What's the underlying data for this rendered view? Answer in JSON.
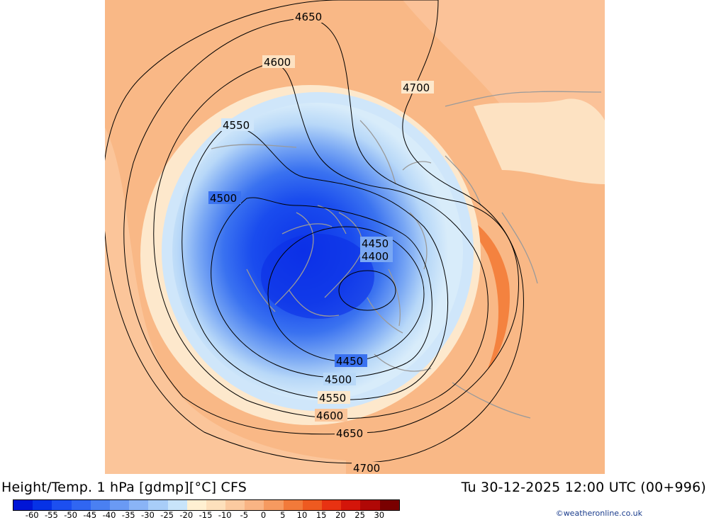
{
  "title": {
    "left": "Height/Temp. 1 hPa [gdmp][°C] CFS",
    "right": "Tu 30-12-2025 12:00 UTC (00+996)"
  },
  "credit": "©weatheronline.co.uk",
  "colors": {
    "background_warm": "#f9b886",
    "ocean_warm": "#fcd2ac",
    "hot_streak": "#f4823f",
    "cold_core": "#0c33e8",
    "coast": "#9a9a9a",
    "contour": "#000000"
  },
  "colorbar": {
    "ticks": [
      "-60",
      "-55",
      "-50",
      "-45",
      "-40",
      "-35",
      "-30",
      "-25",
      "-20",
      "-15",
      "-10",
      "-5",
      "0",
      "5",
      "10",
      "15",
      "20",
      "25",
      "30"
    ],
    "colors": [
      "#0015d6",
      "#0632e6",
      "#1c4ff0",
      "#3066f2",
      "#4a80f2",
      "#6a9af4",
      "#8ab4f6",
      "#a8cdf8",
      "#c8e4fa",
      "#fff0d2",
      "#fde0bc",
      "#fbcaa0",
      "#f9b484",
      "#f69a60",
      "#f27a3a",
      "#ee5a20",
      "#e83212",
      "#d4150a",
      "#b00806",
      "#7a0000"
    ]
  },
  "contours": {
    "labels": [
      "4650",
      "4600",
      "4700",
      "4550",
      "4500",
      "4450",
      "4400",
      "4450",
      "4500",
      "4550",
      "4600",
      "4650",
      "4700"
    ]
  }
}
